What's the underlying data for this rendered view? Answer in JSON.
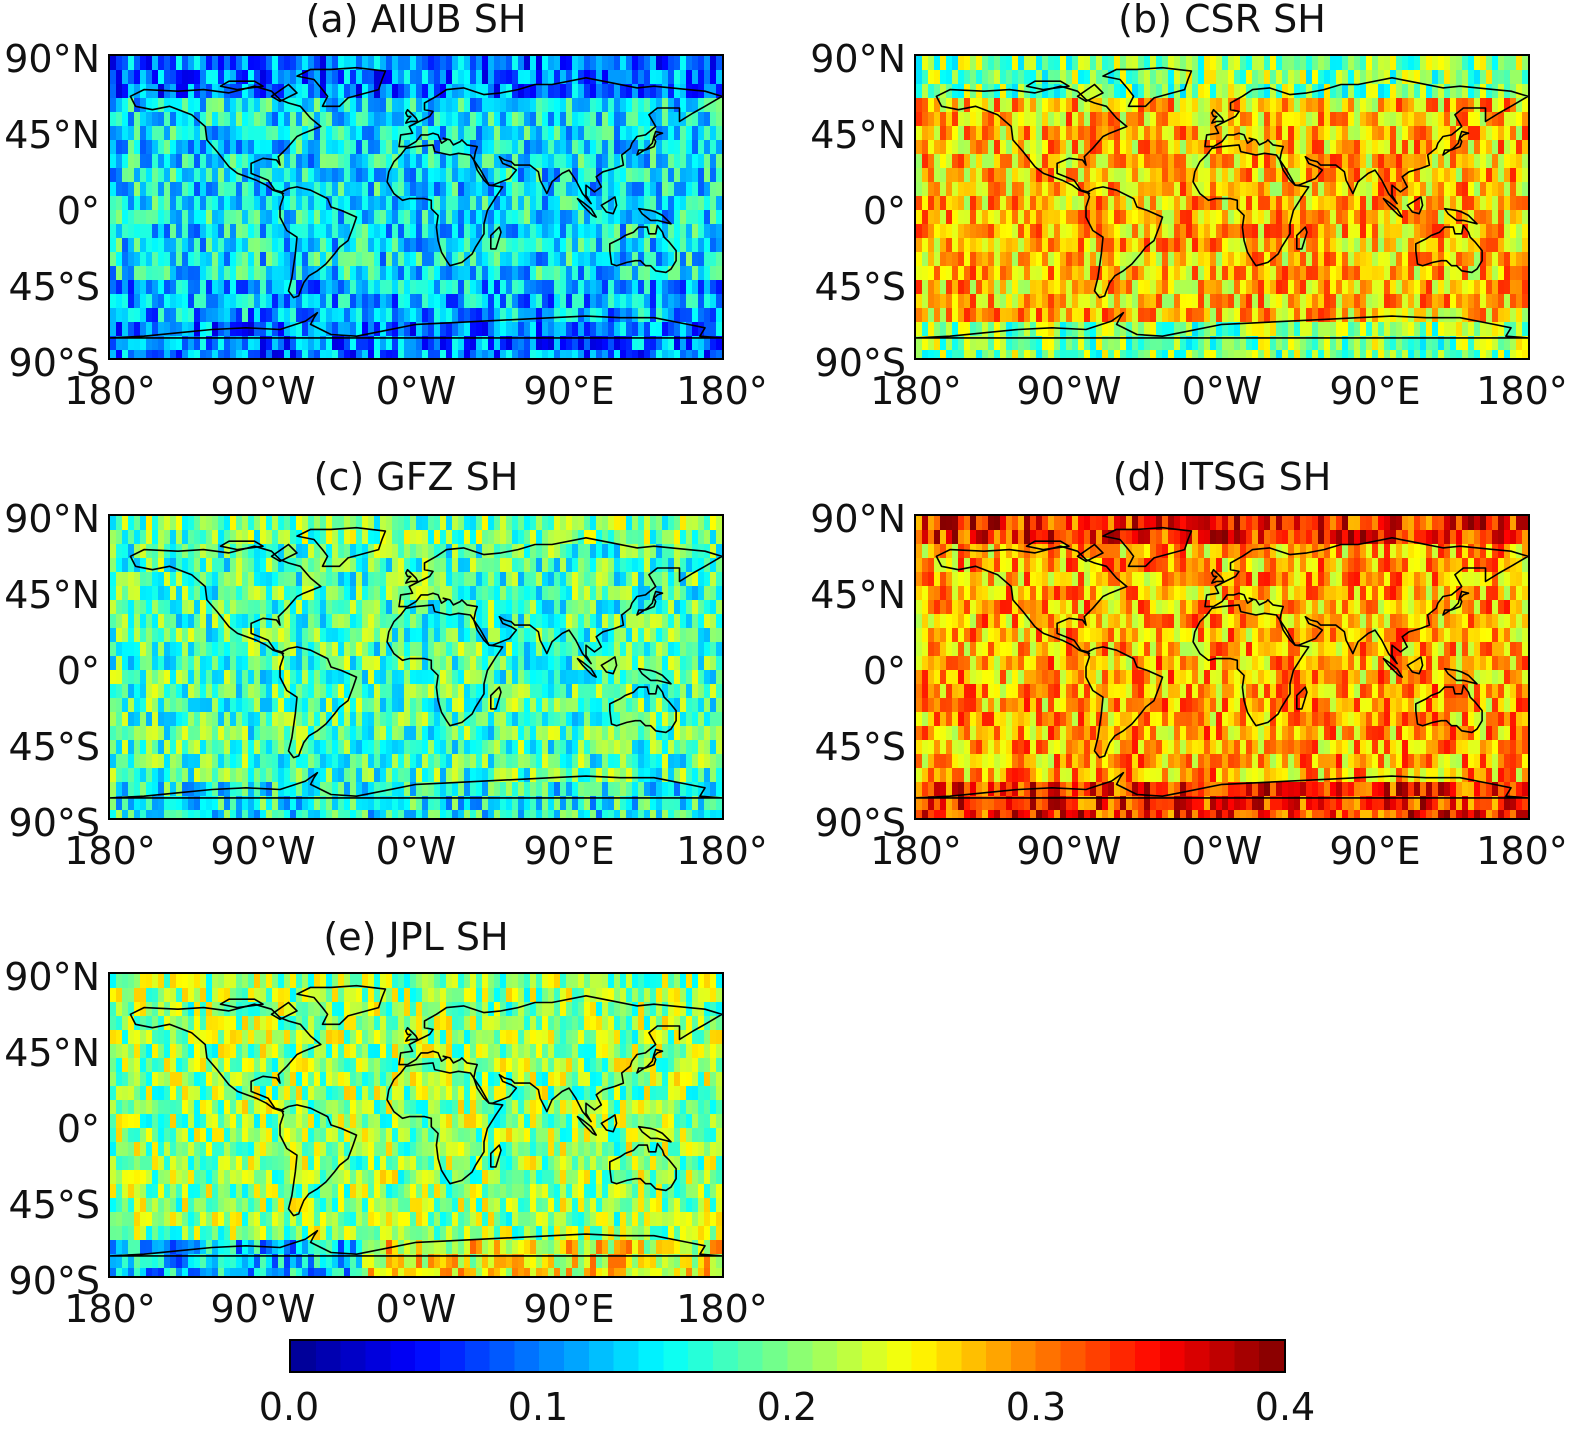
{
  "figure": {
    "panels": [
      {
        "id": "a",
        "title": "(a) AIUB SH",
        "pattern": "blue"
      },
      {
        "id": "b",
        "title": "(b) CSR SH",
        "pattern": "warm"
      },
      {
        "id": "c",
        "title": "(c) GFZ SH",
        "pattern": "cyan"
      },
      {
        "id": "d",
        "title": "(d) ITSG SH",
        "pattern": "hot"
      },
      {
        "id": "e",
        "title": "(e) JPL SH",
        "pattern": "mixed"
      }
    ],
    "lat_labels": [
      "90°N",
      "45°N",
      "0°",
      "45°S",
      "90°S"
    ],
    "lon_labels": [
      "180°",
      "90°W",
      "0°W",
      "90°E",
      "180°"
    ]
  },
  "colorbar": {
    "min": 0.0,
    "max": 0.4,
    "ticks": [
      "0.0",
      "0.1",
      "0.2",
      "0.3",
      "0.4"
    ],
    "colormap": "jet",
    "colors": [
      "#00008f",
      "#0000ff",
      "#007fff",
      "#00ffff",
      "#7fff7f",
      "#ffff00",
      "#ff7f00",
      "#ff0000",
      "#7f0000"
    ]
  }
}
